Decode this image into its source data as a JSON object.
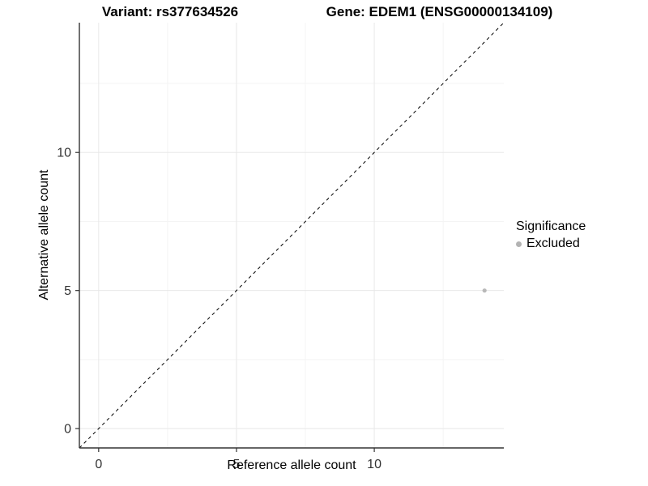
{
  "header": {
    "variant_title": "Variant: rs377634526",
    "gene_title": "Gene: EDEM1 (ENSG00000134109)"
  },
  "legend": {
    "title": "Significance",
    "items": [
      {
        "label": "Excluded",
        "color": "#b3b3b3"
      }
    ]
  },
  "colors": {
    "background": "#ffffff",
    "axis_line": "#333333",
    "tick_text": "#333333",
    "grid_major": "#e8e8e8",
    "grid_minor": "#f4f4f4",
    "identity_line": "#000000",
    "point": "#b8b8b8"
  },
  "chart_data": {
    "type": "scatter",
    "title": "Variant: rs377634526 | Gene: EDEM1 (ENSG00000134109)",
    "xlabel": "Reference allele count",
    "ylabel": "Alternative allele count",
    "xlim": [
      -0.7,
      14.7
    ],
    "ylim": [
      -0.7,
      14.7
    ],
    "x_major_ticks": [
      0,
      5,
      10
    ],
    "y_major_ticks": [
      0,
      5,
      10
    ],
    "x_minor_ticks": [
      2.5,
      7.5,
      12.5
    ],
    "y_minor_ticks": [
      2.5,
      7.5,
      12.5
    ],
    "grid": true,
    "legend_position": "right",
    "reference_line": {
      "kind": "identity",
      "style": "dashed",
      "from": [
        -0.7,
        -0.7
      ],
      "to": [
        14.7,
        14.7
      ]
    },
    "series": [
      {
        "name": "Excluded",
        "color": "#b8b8b8",
        "points": [
          {
            "x": 14,
            "y": 5
          }
        ]
      }
    ]
  }
}
